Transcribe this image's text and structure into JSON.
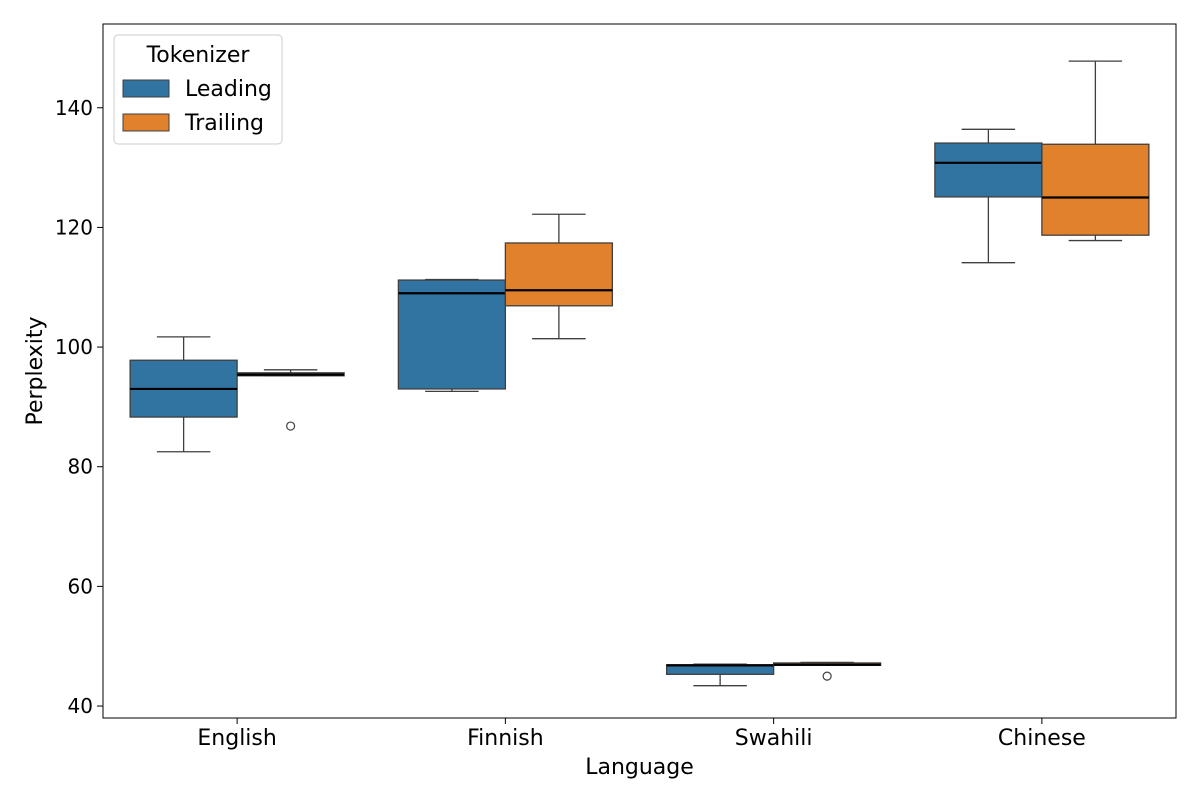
{
  "chart_data": {
    "type": "box",
    "title": "",
    "xlabel": "Language",
    "ylabel": "Perplexity",
    "ylim": [
      38,
      154
    ],
    "yticks": [
      40,
      60,
      80,
      100,
      120,
      140
    ],
    "grid": false,
    "legend": {
      "title": "Tokenizer",
      "placement": "top-left"
    },
    "categories": [
      "English",
      "Finnish",
      "Swahili",
      "Chinese"
    ],
    "series": [
      {
        "name": "Leading",
        "color": "#3274a1",
        "boxes": [
          {
            "whisker_low": 82.5,
            "q1": 88.3,
            "median": 93.0,
            "q3": 97.8,
            "whisker_high": 101.7,
            "outliers": []
          },
          {
            "whisker_low": 92.6,
            "q1": 93.0,
            "median": 109.0,
            "q3": 111.2,
            "whisker_high": 111.3,
            "outliers": []
          },
          {
            "whisker_low": 43.4,
            "q1": 45.3,
            "median": 46.8,
            "q3": 46.9,
            "whisker_high": 47.0,
            "outliers": []
          },
          {
            "whisker_low": 114.1,
            "q1": 125.1,
            "median": 130.8,
            "q3": 134.1,
            "whisker_high": 136.4,
            "outliers": []
          }
        ]
      },
      {
        "name": "Trailing",
        "color": "#e1812c",
        "boxes": [
          {
            "whisker_low": 95.2,
            "q1": 95.2,
            "median": 95.4,
            "q3": 95.7,
            "whisker_high": 96.2,
            "outliers": [
              86.8
            ]
          },
          {
            "whisker_low": 101.4,
            "q1": 106.9,
            "median": 109.5,
            "q3": 117.4,
            "whisker_high": 122.2,
            "outliers": []
          },
          {
            "whisker_low": 46.8,
            "q1": 46.8,
            "median": 46.9,
            "q3": 47.2,
            "whisker_high": 47.3,
            "outliers": [
              45.0
            ]
          },
          {
            "whisker_low": 117.8,
            "q1": 118.7,
            "median": 125.0,
            "q3": 133.9,
            "whisker_high": 147.8,
            "outliers": []
          }
        ]
      }
    ]
  }
}
